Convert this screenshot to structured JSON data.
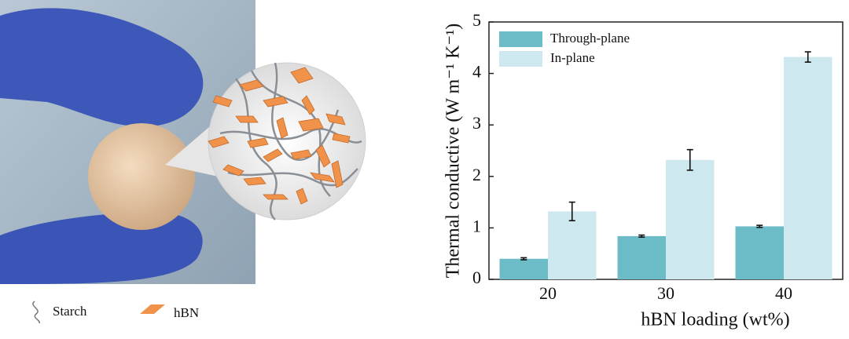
{
  "illustration": {
    "legend": [
      {
        "label": "Starch"
      },
      {
        "label": "hBN"
      }
    ]
  },
  "chart_data": {
    "type": "bar",
    "x_label": "hBN loading (wt%)",
    "y_label": "Thermal conductive (W m⁻¹ K⁻¹)",
    "categories": [
      "20",
      "30",
      "40"
    ],
    "series": [
      {
        "name": "Through-plane",
        "color": "#6cbcc8",
        "values": [
          0.4,
          0.84,
          1.03
        ],
        "errors": [
          0.02,
          0.02,
          0.02
        ]
      },
      {
        "name": "In-plane",
        "color": "#cde8ee",
        "values": [
          1.32,
          2.32,
          4.32
        ],
        "errors": [
          0.18,
          0.2,
          0.1
        ]
      }
    ],
    "ylim": [
      0,
      5
    ],
    "yticks": [
      0,
      1,
      2,
      3,
      4,
      5
    ],
    "legend": "upper left",
    "error_color": "#111"
  }
}
